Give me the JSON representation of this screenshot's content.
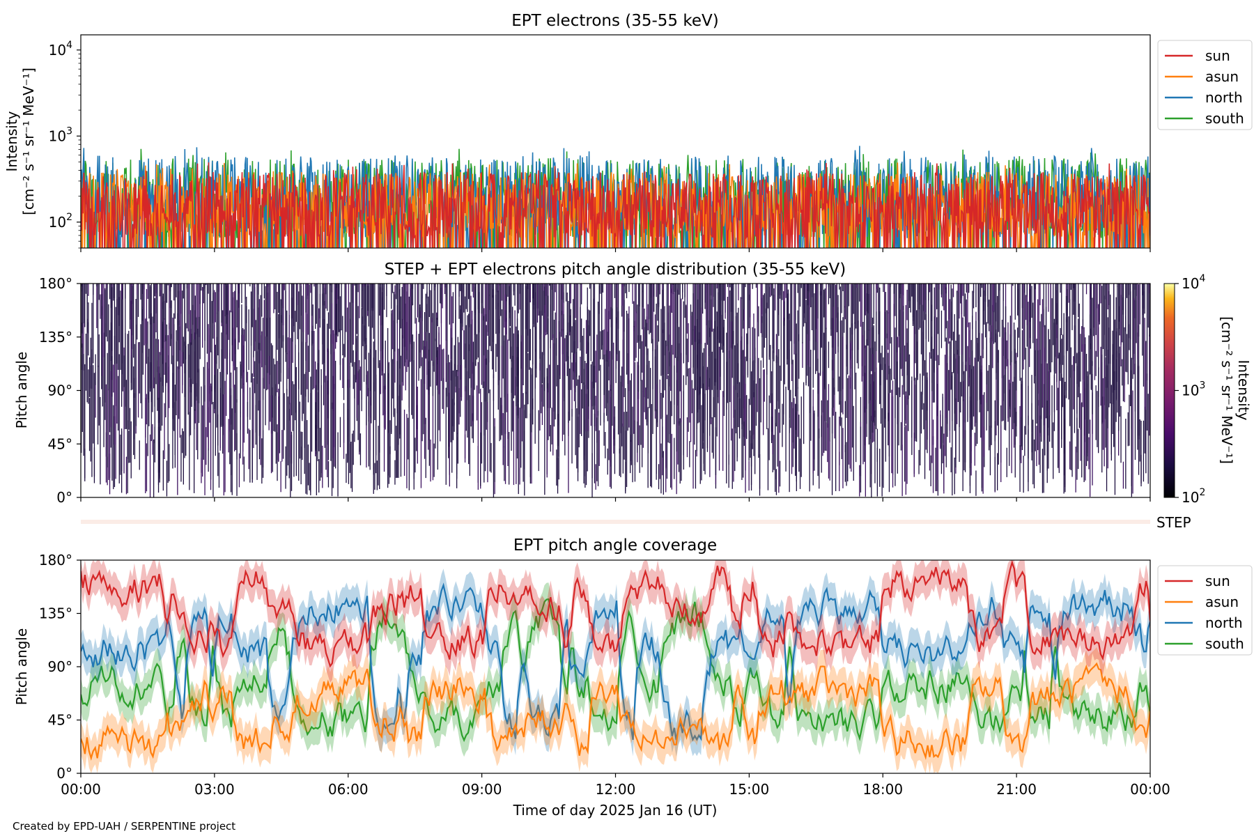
{
  "colors": {
    "sun": "#d62728",
    "asun": "#ff7f0e",
    "north": "#1f77b4",
    "south": "#2ca02c",
    "pad_fill": "#1b0c3d",
    "step_band": "#fbece6"
  },
  "x_axis": {
    "label": "Time of day 2025 Jan 16 (UT)",
    "ticks": [
      "00:00",
      "03:00",
      "06:00",
      "09:00",
      "12:00",
      "15:00",
      "18:00",
      "21:00",
      "00:00"
    ],
    "range_hours": [
      0,
      24
    ]
  },
  "credit": "Created by EPD-UAH / SERPENTINE project",
  "step_label": "STEP",
  "chart_data": [
    {
      "type": "line",
      "title": "EPT electrons (35-55 keV)",
      "ylabel_line1": "Intensity",
      "ylabel_line2": "[cm⁻² s⁻¹ sr⁻¹ MeV⁻¹]",
      "yscale": "log",
      "ylim": [
        50,
        15000
      ],
      "yticks": [
        {
          "value": 100,
          "base": "10",
          "exp": "2"
        },
        {
          "value": 1000,
          "base": "10",
          "exp": "3"
        },
        {
          "value": 10000,
          "base": "10",
          "exp": "4"
        }
      ],
      "legend_position": "outside-upper-right",
      "series": [
        {
          "name": "sun",
          "typical_range": [
            60,
            450
          ]
        },
        {
          "name": "asun",
          "typical_range": [
            60,
            450
          ]
        },
        {
          "name": "north",
          "typical_range": [
            60,
            700
          ]
        },
        {
          "name": "south",
          "typical_range": [
            60,
            650
          ]
        }
      ]
    },
    {
      "type": "heatmap",
      "title": "STEP + EPT electrons pitch angle distribution (35-55 keV)",
      "ylabel": "Pitch angle",
      "ylim": [
        0,
        180
      ],
      "yticks": [
        "0°",
        "45°",
        "90°",
        "135°",
        "180°"
      ],
      "colorbar": {
        "label_line1": "Intensity",
        "label_line2": "[cm⁻² s⁻¹ sr⁻¹ MeV⁻¹]",
        "scale": "log",
        "range": [
          100,
          10000
        ],
        "ticks": [
          {
            "value": 100,
            "base": "10",
            "exp": "2"
          },
          {
            "value": 1000,
            "base": "10",
            "exp": "3"
          },
          {
            "value": 10000,
            "base": "10",
            "exp": "4"
          }
        ]
      }
    },
    {
      "type": "line",
      "title": "EPT pitch angle coverage",
      "ylabel": "Pitch angle",
      "ylim": [
        0,
        180
      ],
      "yticks": [
        "0°",
        "45°",
        "90°",
        "135°",
        "180°"
      ],
      "legend_position": "outside-upper-right",
      "series": [
        {
          "name": "sun",
          "typical_range": [
            80,
            180
          ]
        },
        {
          "name": "asun",
          "typical_range": [
            0,
            100
          ]
        },
        {
          "name": "north",
          "typical_range": [
            20,
            160
          ]
        },
        {
          "name": "south",
          "typical_range": [
            30,
            150
          ]
        }
      ]
    }
  ]
}
